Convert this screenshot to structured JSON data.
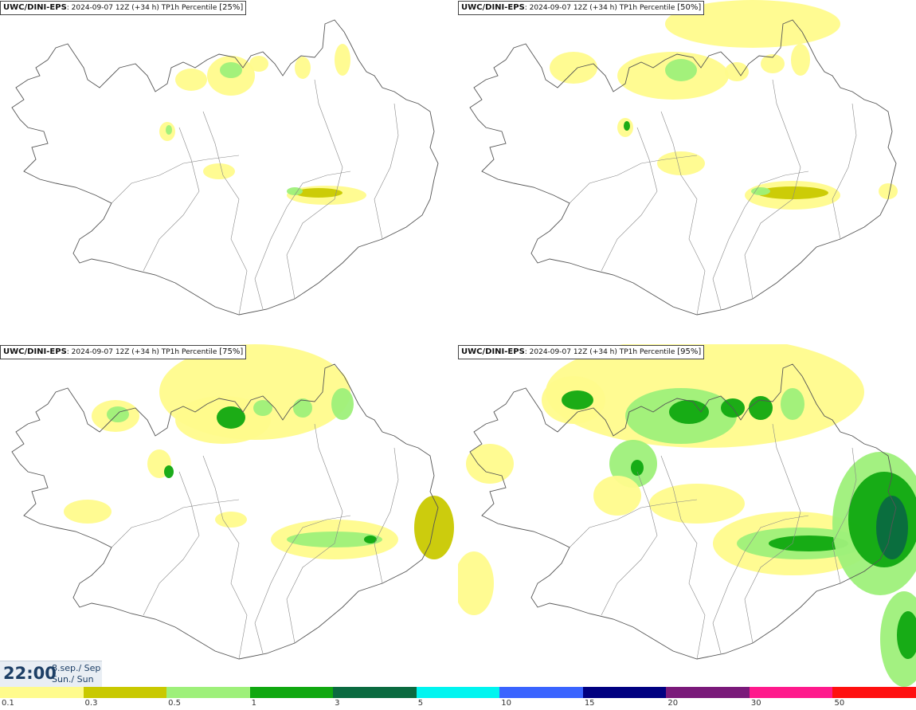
{
  "panels": [
    {
      "model": "UWC/DINI-EPS",
      "run": ": 2024-09-07 12Z (+34 h) TP1h Percentile ",
      "percentile": "[25%]"
    },
    {
      "model": "UWC/DINI-EPS",
      "run": ": 2024-09-07 12Z (+34 h) TP1h Percentile ",
      "percentile": "[50%]"
    },
    {
      "model": "UWC/DINI-EPS",
      "run": ": 2024-09-07 12Z (+34 h) TP1h Percentile ",
      "percentile": "[75%]"
    },
    {
      "model": "UWC/DINI-EPS",
      "run": ": 2024-09-07 12Z (+34 h) TP1h Percentile ",
      "percentile": "[95%]"
    }
  ],
  "timebox": {
    "time": "22:00",
    "date_line1": "8.sep./ Sep",
    "date_line2": "Sun./ Sun"
  },
  "colorbar": {
    "colors": [
      "#fffb8c",
      "#c9c900",
      "#9ef07a",
      "#10a810",
      "#0a6a40",
      "#00f5f0",
      "#3a64ff",
      "#000080",
      "#7a1a7a",
      "#ff1a8c",
      "#ff1010"
    ],
    "labels": [
      "0.1",
      "0.3",
      "0.5",
      "1",
      "3",
      "5",
      "10",
      "15",
      "20",
      "30",
      "50"
    ]
  }
}
